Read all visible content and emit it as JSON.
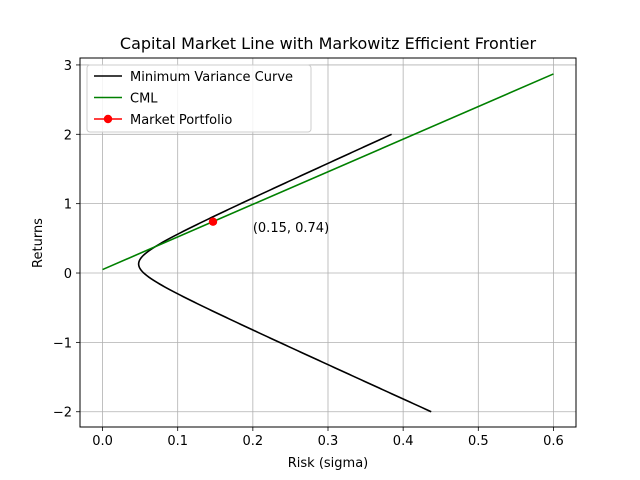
{
  "chart_data": {
    "type": "line",
    "title": "Capital Market Line with Markowitz Efficient Frontier",
    "xlabel": "Risk (sigma)",
    "ylabel": "Returns",
    "xlim": [
      -0.03,
      0.63
    ],
    "ylim": [
      -2.22,
      3.1
    ],
    "x_ticks": [
      0.0,
      0.1,
      0.2,
      0.3,
      0.4,
      0.5,
      0.6
    ],
    "x_tick_labels": [
      "0.0",
      "0.1",
      "0.2",
      "0.3",
      "0.4",
      "0.5",
      "0.6"
    ],
    "y_ticks": [
      -2,
      -1,
      0,
      1,
      2,
      3
    ],
    "y_tick_labels": [
      "−2",
      "−1",
      "0",
      "1",
      "2",
      "3"
    ],
    "grid": true,
    "legend_position": "top-left",
    "series": [
      {
        "name": "Minimum Variance Curve",
        "color": "#000000",
        "kind": "curve",
        "curve_params": {
          "min_sigma": 0.048,
          "min_return": 0.13,
          "b": 4.9,
          "y_min": -2.0,
          "y_max": 2.0
        }
      },
      {
        "name": "CML",
        "color": "#008000",
        "kind": "line",
        "x": [
          0.0,
          0.6
        ],
        "y": [
          0.05,
          2.87
        ]
      },
      {
        "name": "Market Portfolio",
        "color": "#ff0000",
        "kind": "point",
        "x": [
          0.147
        ],
        "y": [
          0.74
        ]
      }
    ],
    "annotations": [
      {
        "text": "(0.15, 0.74)",
        "x": 0.2,
        "y": 0.66
      }
    ]
  }
}
